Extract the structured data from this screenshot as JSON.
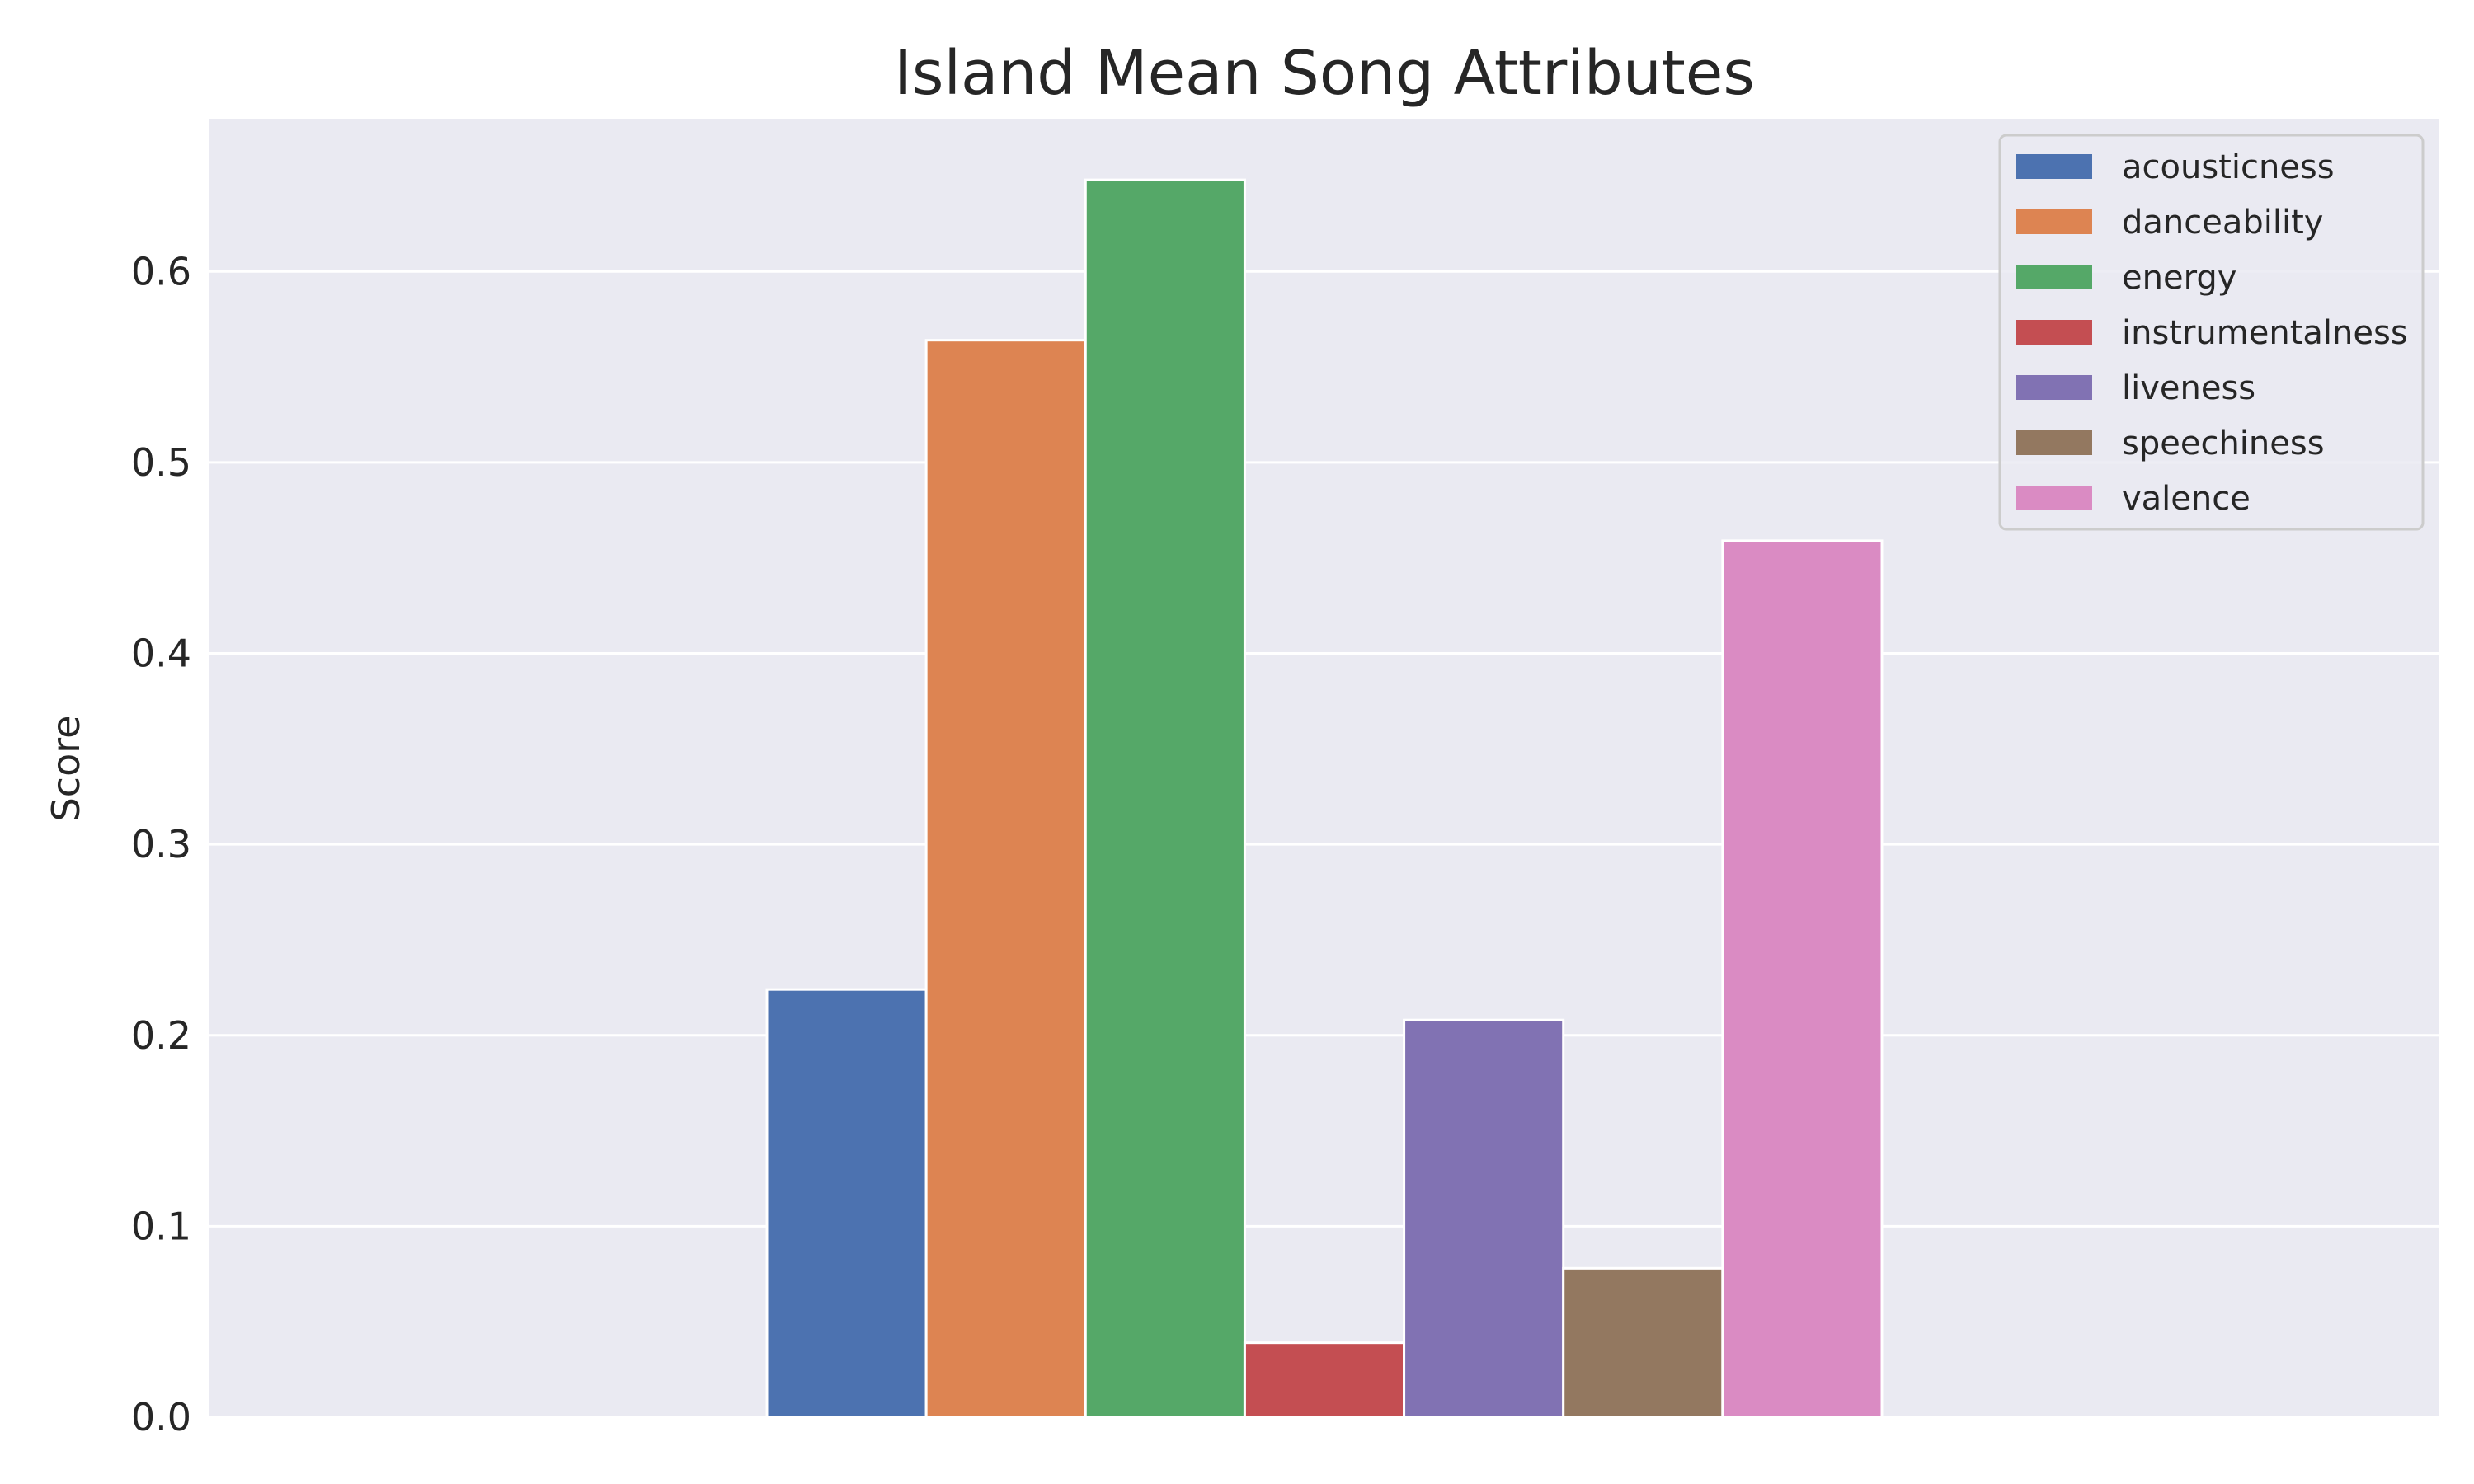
{
  "chart_data": {
    "type": "bar",
    "title": "Island Mean Song Attributes",
    "xlabel": "",
    "ylabel": "Score",
    "ylim": [
      0,
      0.68
    ],
    "yticks": [
      "0.0",
      "0.1",
      "0.2",
      "0.3",
      "0.4",
      "0.5",
      "0.6"
    ],
    "grid": true,
    "legend_position": "top-right",
    "series": [
      {
        "name": "acousticness",
        "value": 0.224,
        "color": "#4C72B0"
      },
      {
        "name": "danceability",
        "value": 0.564,
        "color": "#DD8452"
      },
      {
        "name": "energy",
        "value": 0.648,
        "color": "#55A868"
      },
      {
        "name": "instrumentalness",
        "value": 0.039,
        "color": "#C44E52"
      },
      {
        "name": "liveness",
        "value": 0.208,
        "color": "#8172B3"
      },
      {
        "name": "speechiness",
        "value": 0.078,
        "color": "#937860"
      },
      {
        "name": "valence",
        "value": 0.459,
        "color": "#DA8BC3"
      }
    ],
    "colors": {
      "plot_background": "#EAEAF2",
      "grid": "#FFFFFF"
    }
  }
}
